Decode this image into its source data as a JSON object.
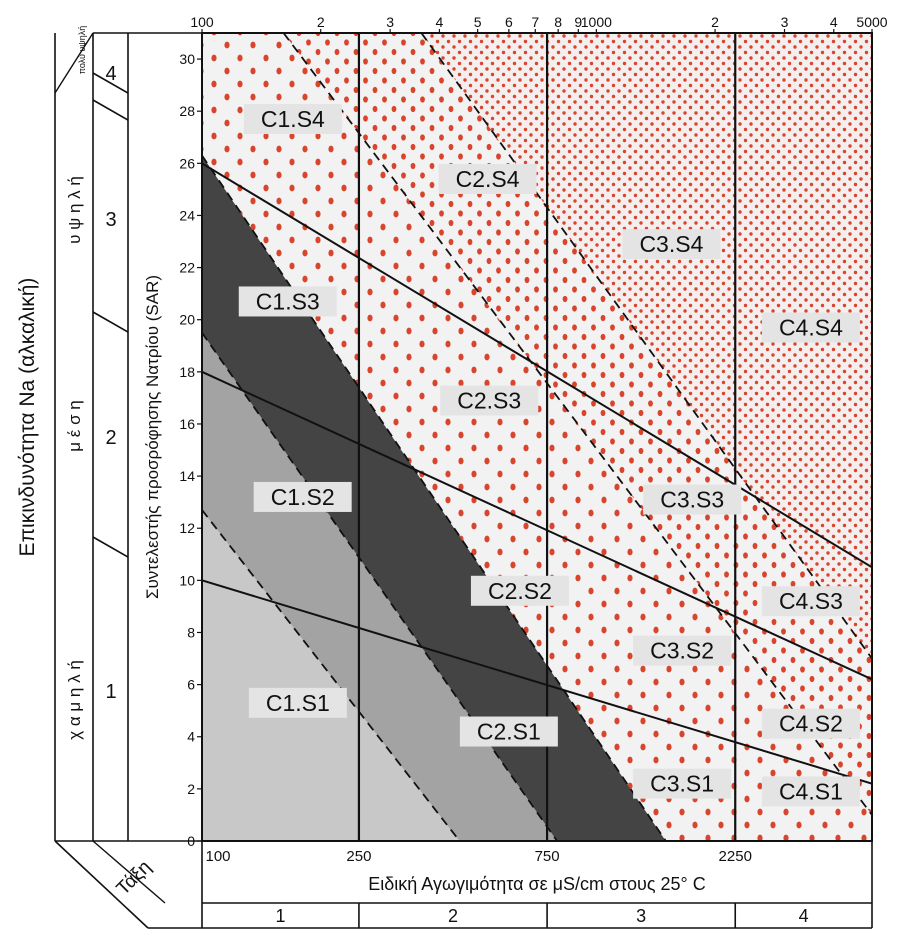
{
  "chart_data": {
    "type": "area",
    "title": "",
    "xlabel": "Ειδική Αγωγιμότητα σε μS/cm στους 25° C",
    "ylabel": "Συντελεστής προσρόφησης Νατρίου (SAR)",
    "left_axis_title": "Επικινδυνότητα Na (αλκαλική)",
    "x_scale": "log",
    "xlim": [
      100,
      5000
    ],
    "ylim": [
      0,
      31
    ],
    "top_ticks": [
      {
        "x": 100,
        "label": "100"
      },
      {
        "x": 200,
        "label": "2"
      },
      {
        "x": 300,
        "label": "3"
      },
      {
        "x": 400,
        "label": "4"
      },
      {
        "x": 500,
        "label": "5"
      },
      {
        "x": 600,
        "label": "6"
      },
      {
        "x": 700,
        "label": "7"
      },
      {
        "x": 800,
        "label": "8"
      },
      {
        "x": 900,
        "label": "9"
      },
      {
        "x": 1000,
        "label": "1000"
      },
      {
        "x": 2000,
        "label": "2"
      },
      {
        "x": 3000,
        "label": "3"
      },
      {
        "x": 4000,
        "label": "4"
      },
      {
        "x": 5000,
        "label": "5000"
      }
    ],
    "bottom_ticks": [
      {
        "x": 100,
        "label": "100"
      },
      {
        "x": 250,
        "label": "250"
      },
      {
        "x": 750,
        "label": "750"
      },
      {
        "x": 2250,
        "label": "2250"
      }
    ],
    "y_ticks": [
      {
        "y": 0,
        "label": "0"
      },
      {
        "y": 2,
        "label": "2"
      },
      {
        "y": 4,
        "label": "4"
      },
      {
        "y": 6,
        "label": "6"
      },
      {
        "y": 8,
        "label": "8"
      },
      {
        "y": 10,
        "label": "10"
      },
      {
        "y": 12,
        "label": "12"
      },
      {
        "y": 14,
        "label": "14"
      },
      {
        "y": 16,
        "label": "16"
      },
      {
        "y": 18,
        "label": "18"
      },
      {
        "y": 20,
        "label": "20"
      },
      {
        "y": 22,
        "label": "22"
      },
      {
        "y": 24,
        "label": "24"
      },
      {
        "y": 26,
        "label": "26"
      },
      {
        "y": 28,
        "label": "28"
      },
      {
        "y": 30,
        "label": "30"
      }
    ],
    "salinity_boundaries": [
      250,
      750,
      2250
    ],
    "salinity_classes": [
      {
        "label": "1",
        "from": 100,
        "to": 250
      },
      {
        "label": "2",
        "from": 250,
        "to": 750
      },
      {
        "label": "3",
        "from": 750,
        "to": 2250
      },
      {
        "label": "4",
        "from": 2250,
        "to": 5000
      }
    ],
    "taxi_label": "Τάξη",
    "sodium_classes": [
      {
        "number": "1",
        "name": "χ α μ η λ ή"
      },
      {
        "number": "2",
        "name": "μ έ σ η"
      },
      {
        "number": "3",
        "name": "υ ψ η λ ή"
      },
      {
        "number": "4",
        "name": "πολύ υψηλή"
      }
    ],
    "sodium_lines": [
      {
        "boundary": "S1/S2",
        "points": [
          [
            100,
            10
          ],
          [
            5000,
            2.2
          ]
        ]
      },
      {
        "boundary": "S2/S3",
        "points": [
          [
            100,
            18
          ],
          [
            5000,
            6.2
          ]
        ]
      },
      {
        "boundary": "S3/S4",
        "points": [
          [
            100,
            26
          ],
          [
            5000,
            10.5
          ]
        ]
      }
    ],
    "dashed_lines": [
      {
        "points": [
          [
            100,
            12.7
          ],
          [
            450,
            0
          ]
        ]
      },
      {
        "points": [
          [
            100,
            19.5
          ],
          [
            795,
            0
          ]
        ]
      },
      {
        "points": [
          [
            100,
            26.3
          ],
          [
            1500,
            0
          ]
        ]
      },
      {
        "points": [
          [
            161,
            31
          ],
          [
            5000,
            1
          ]
        ]
      },
      {
        "points": [
          [
            360,
            31
          ],
          [
            5000,
            7
          ]
        ]
      }
    ],
    "zones": [
      {
        "label": "C1.S1",
        "x": 175,
        "y": 5.3
      },
      {
        "label": "C2.S1",
        "x": 600,
        "y": 4.2
      },
      {
        "label": "C3.S1",
        "x": 1650,
        "y": 2.2
      },
      {
        "label": "C4.S1",
        "x": 3500,
        "y": 1.9
      },
      {
        "label": "C1.S2",
        "x": 180,
        "y": 13.2
      },
      {
        "label": "C2.S2",
        "x": 640,
        "y": 9.6
      },
      {
        "label": "C3.S2",
        "x": 1650,
        "y": 7.3
      },
      {
        "label": "C4.S2",
        "x": 3500,
        "y": 4.5
      },
      {
        "label": "C1.S3",
        "x": 165,
        "y": 20.7
      },
      {
        "label": "C2.S3",
        "x": 535,
        "y": 16.9
      },
      {
        "label": "C3.S3",
        "x": 1750,
        "y": 13.1
      },
      {
        "label": "C4.S3",
        "x": 3500,
        "y": 9.2
      },
      {
        "label": "C1.S4",
        "x": 170,
        "y": 27.7
      },
      {
        "label": "C2.S4",
        "x": 530,
        "y": 25.4
      },
      {
        "label": "C3.S4",
        "x": 1550,
        "y": 22.9
      },
      {
        "label": "C4.S4",
        "x": 3500,
        "y": 19.7
      }
    ],
    "colors": {
      "light": "#c8c8c8",
      "medium": "#a3a3a3",
      "dark": "#444444",
      "dot": "#d9442c",
      "label_bg": "#e4e4e4",
      "line": "#111111"
    }
  }
}
